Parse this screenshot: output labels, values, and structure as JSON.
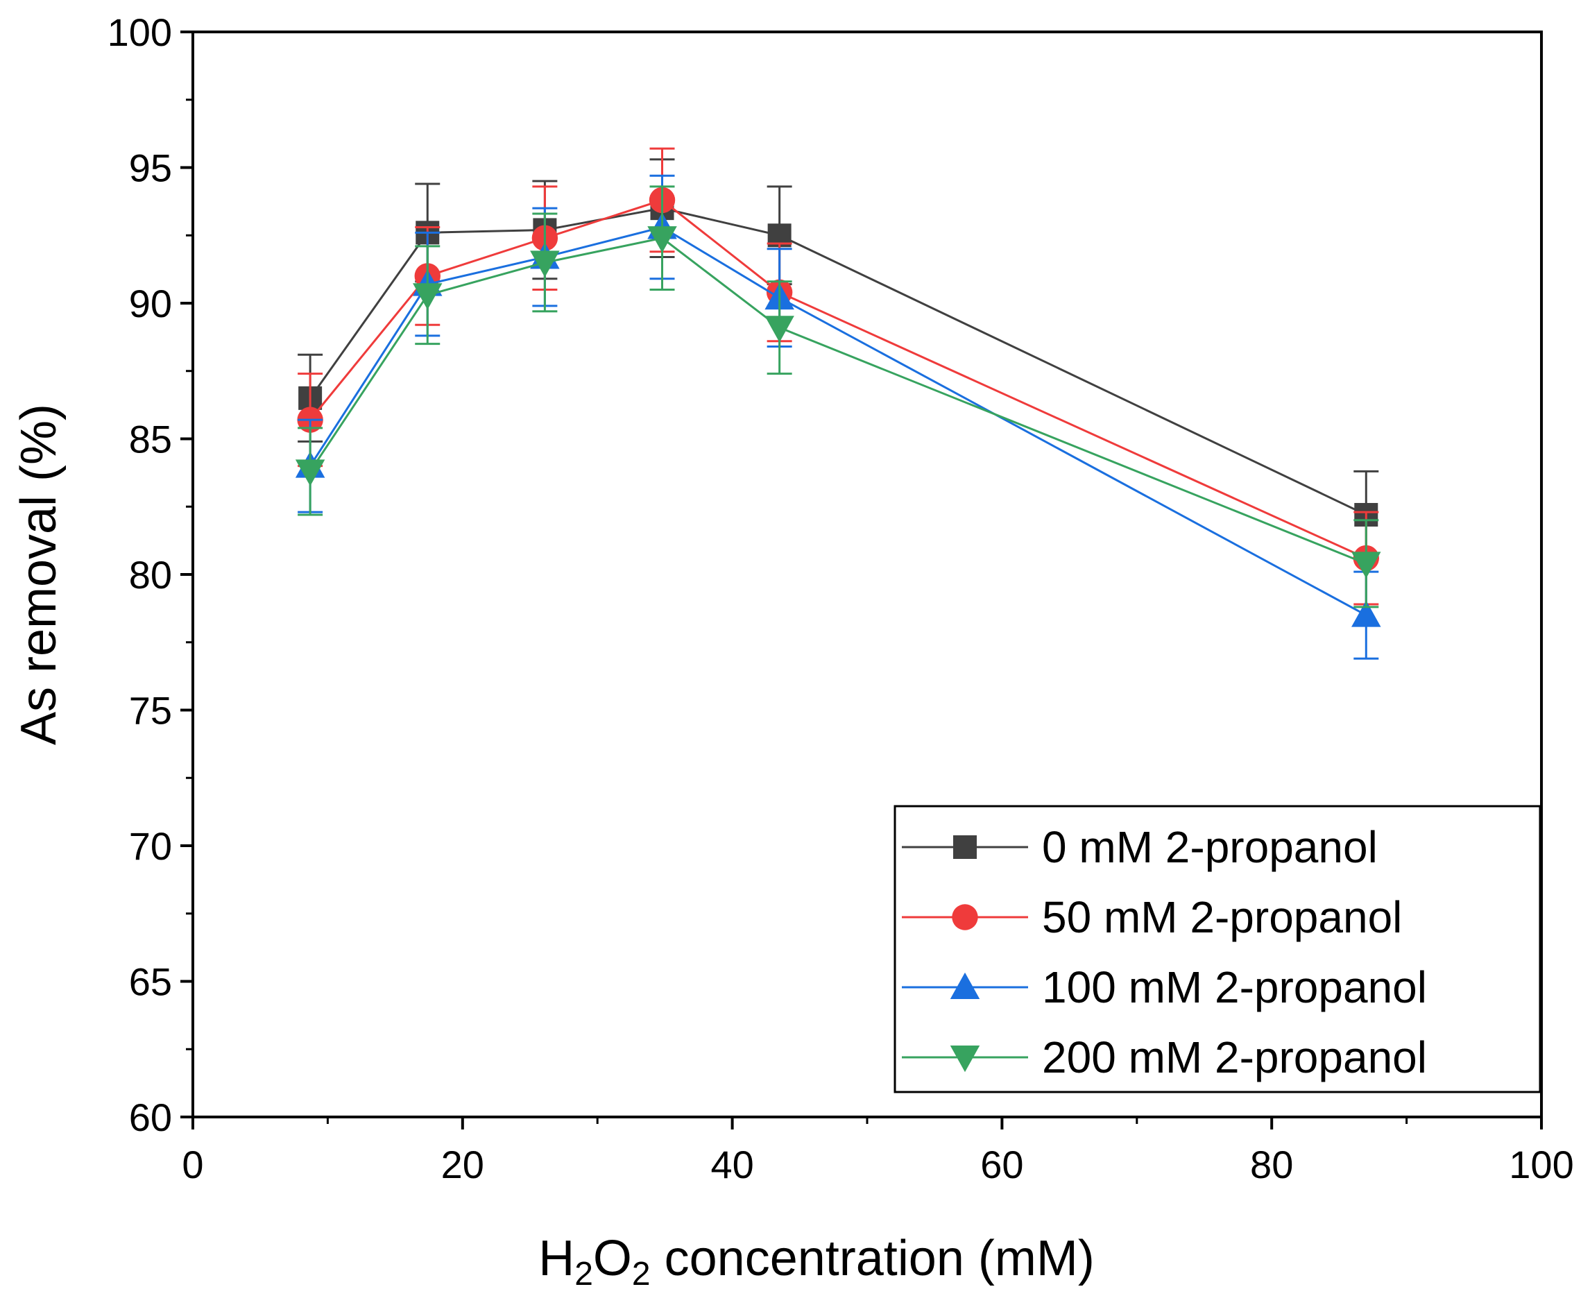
{
  "chart_data": {
    "type": "line",
    "title": "",
    "xlabel_parts": {
      "h": "H",
      "sub2a": "2",
      "o": "O",
      "sub2b": "2",
      "rest": " concentration (mM)"
    },
    "ylabel": "As removal (%)",
    "xlim": [
      0,
      100
    ],
    "ylim": [
      60,
      100
    ],
    "xticks": [
      0,
      20,
      40,
      60,
      80,
      100
    ],
    "yticks": [
      60,
      65,
      70,
      75,
      80,
      85,
      90,
      95,
      100
    ],
    "xtick_labels": [
      "0",
      "20",
      "40",
      "60",
      "80",
      "100"
    ],
    "ytick_labels": [
      "60",
      "65",
      "70",
      "75",
      "80",
      "85",
      "90",
      "95",
      "100"
    ],
    "x_minor_step": 10,
    "y_minor_step": 2.5,
    "grid": false,
    "legend_position": "bottom-right",
    "x": [
      8.7,
      17.4,
      26.1,
      34.8,
      43.5,
      87.0
    ],
    "series": [
      {
        "name": "0 mM 2-propanol",
        "color": "#404040",
        "marker": "square",
        "values": [
          86.5,
          92.6,
          92.7,
          93.5,
          92.5,
          82.2
        ],
        "errors": [
          1.6,
          1.8,
          1.8,
          1.8,
          1.8,
          1.6
        ]
      },
      {
        "name": "50 mM 2-propanol",
        "color": "#ef3b3b",
        "marker": "circle",
        "values": [
          85.7,
          91.0,
          92.4,
          93.8,
          90.4,
          80.6
        ],
        "errors": [
          1.7,
          1.8,
          1.9,
          1.9,
          1.8,
          1.7
        ]
      },
      {
        "name": "100 mM 2-propanol",
        "color": "#1a6fdf",
        "marker": "triangle-up",
        "values": [
          84.0,
          90.7,
          91.7,
          92.8,
          90.2,
          78.5
        ],
        "errors": [
          1.7,
          1.9,
          1.8,
          1.9,
          1.8,
          1.6
        ]
      },
      {
        "name": "200 mM 2-propanol",
        "color": "#37a35f",
        "marker": "triangle-down",
        "values": [
          83.8,
          90.3,
          91.5,
          92.4,
          89.1,
          80.4
        ],
        "errors": [
          1.6,
          1.8,
          1.8,
          1.9,
          1.7,
          1.6
        ]
      }
    ]
  }
}
